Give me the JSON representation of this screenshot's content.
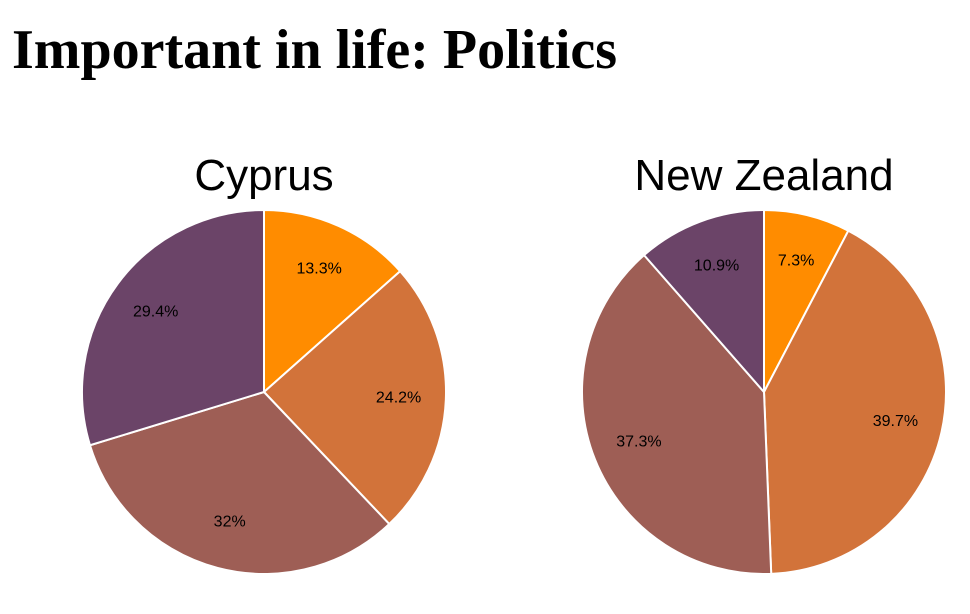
{
  "title": "Important in life: Politics",
  "colors": [
    "#ff8c00",
    "#d2733a",
    "#9e5e55",
    "#6b4468"
  ],
  "chart_data": [
    {
      "type": "pie",
      "title": "Cyprus",
      "values": [
        13.3,
        24.2,
        32,
        29.4
      ],
      "labels": [
        "13.3%",
        "24.2%",
        "32%",
        "29.4%"
      ]
    },
    {
      "type": "pie",
      "title": "New Zealand",
      "values": [
        7.3,
        39.7,
        37.3,
        10.9
      ],
      "labels": [
        "7.3%",
        "39.7%",
        "37.3%",
        "10.9%"
      ]
    }
  ]
}
